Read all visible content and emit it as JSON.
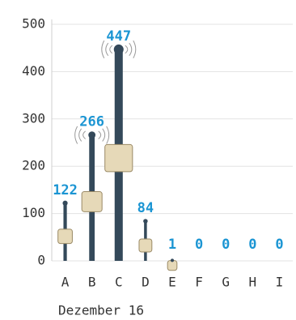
{
  "chart_data": {
    "type": "antenna",
    "x_label": "Dezember 16",
    "categories": [
      "A",
      "B",
      "C",
      "D",
      "E",
      "F",
      "G",
      "H",
      "I"
    ],
    "values": [
      122,
      266,
      447,
      84,
      1,
      0,
      0,
      0,
      0
    ],
    "color": "#34495a",
    "label_color": "#1b95d3",
    "ylim": [
      0,
      500
    ],
    "yticks": [
      0,
      100,
      200,
      300,
      400,
      500
    ],
    "grid": true
  }
}
